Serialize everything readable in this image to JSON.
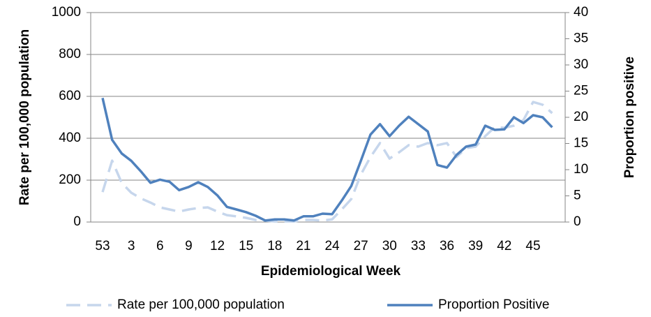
{
  "chart_data": {
    "type": "line",
    "x_label": "Epidemiological Week",
    "y_label": "Rate per 100,000 population",
    "y2_label": "Proportion positive",
    "categories": [
      "53",
      null,
      null,
      "3",
      null,
      null,
      "6",
      null,
      null,
      "9",
      null,
      null,
      "12",
      null,
      null,
      "15",
      null,
      null,
      "18",
      null,
      null,
      "21",
      null,
      null,
      "24",
      null,
      null,
      "27",
      null,
      null,
      "30",
      null,
      null,
      "33",
      null,
      null,
      "36",
      null,
      null,
      "39",
      null,
      null,
      "42",
      null,
      null,
      "45",
      null,
      null
    ],
    "series": [
      {
        "name": "Rate per 100,000 population",
        "color": "#c6d6ec",
        "dashed": true,
        "values": [
          143,
          293,
          187,
          140,
          113,
          93,
          70,
          60,
          50,
          60,
          67,
          70,
          50,
          33,
          27,
          20,
          10,
          7,
          3,
          3,
          3,
          10,
          10,
          7,
          13,
          60,
          110,
          227,
          310,
          377,
          303,
          333,
          367,
          360,
          377,
          367,
          377,
          310,
          353,
          360,
          410,
          453,
          450,
          460,
          487,
          573,
          560,
          520
        ]
      },
      {
        "name": "Proportion Positive",
        "color": "#4f81bd",
        "axis": "y2",
        "values": [
          23.7,
          15.7,
          13.1,
          11.7,
          9.7,
          7.5,
          8.1,
          7.7,
          6.1,
          6.7,
          7.6,
          6.7,
          5.1,
          2.9,
          2.4,
          1.9,
          1.2,
          0.3,
          0.5,
          0.5,
          0.3,
          1.1,
          1.1,
          1.6,
          1.5,
          4.1,
          6.9,
          11.7,
          16.7,
          18.7,
          16.4,
          18.4,
          20.1,
          18.7,
          17.3,
          10.9,
          10.4,
          12.8,
          14.4,
          14.8,
          18.4,
          17.6,
          17.7,
          20,
          18.9,
          20.4,
          20,
          18.1
        ]
      }
    ],
    "ylim": [
      0,
      1000
    ],
    "yticks": [
      0,
      200,
      400,
      600,
      800,
      1000
    ],
    "y2lim": [
      0,
      40
    ],
    "y2ticks": [
      0,
      5,
      10,
      15,
      20,
      25,
      30,
      35,
      40
    ],
    "grid": true,
    "legend": "bottom"
  }
}
